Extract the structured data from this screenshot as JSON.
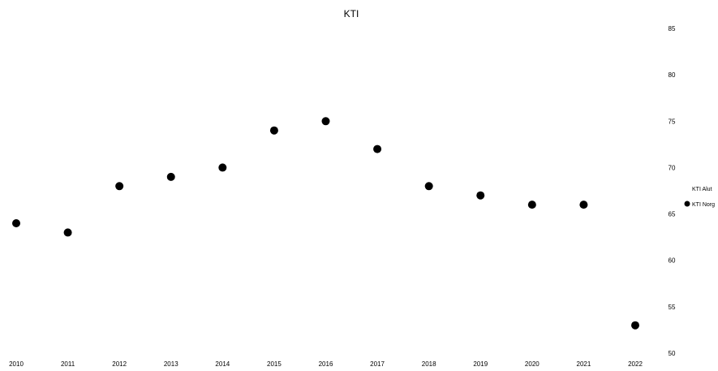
{
  "chart_data": {
    "type": "scatter",
    "title": "KTI",
    "xlabel": "",
    "ylabel": "",
    "categories": [
      "2010",
      "2011",
      "2012",
      "2013",
      "2014",
      "2015",
      "2016",
      "2017",
      "2018",
      "2019",
      "2020",
      "2021",
      "2022"
    ],
    "ylim": [
      50,
      85
    ],
    "y_ticks": [
      50,
      55,
      60,
      65,
      70,
      75,
      80,
      85
    ],
    "y_axis_side": "right",
    "grid": false,
    "legend_position": "right",
    "series": [
      {
        "name": "KTI Alut",
        "values": [],
        "color": "#000000",
        "marker": "none"
      },
      {
        "name": "KTI Norg",
        "values": [
          64,
          63,
          68,
          69,
          70,
          74,
          75,
          72,
          68,
          67,
          66,
          66,
          53
        ],
        "color": "#000000",
        "marker": "circle"
      }
    ]
  }
}
